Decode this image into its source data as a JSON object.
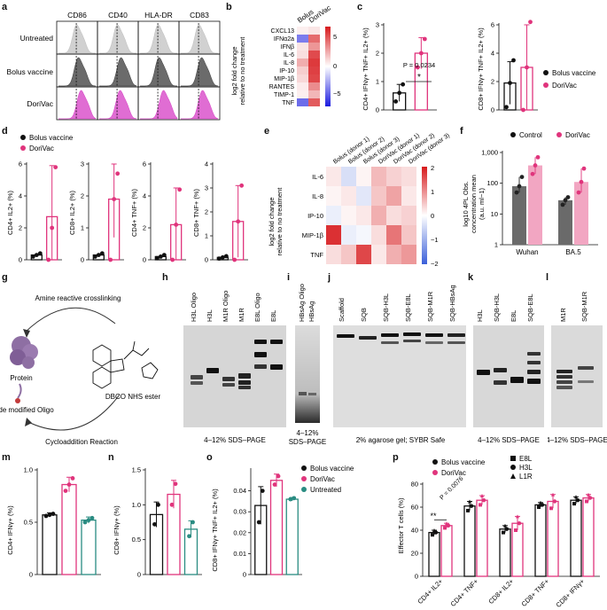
{
  "panels": {
    "a": {
      "letter": "a",
      "markers": [
        "CD86",
        "CD40",
        "HLA-DR",
        "CD83"
      ],
      "conditions": [
        "Untreated",
        "Bolus vaccine",
        "DoriVac"
      ],
      "colors": {
        "untreated": "#bdbdbd",
        "bolus": "#3a3a3a",
        "dorivac": "#d63cc4"
      }
    },
    "b": {
      "letter": "b",
      "columns": [
        "Bolus",
        "DoriVac"
      ],
      "rows": [
        "CXCL13",
        "IFNα2a",
        "IFNβ",
        "IL-6",
        "IL-8",
        "IP-10",
        "MIP-1β",
        "RANTES",
        "TIMP-1",
        "TNF"
      ],
      "values": [
        [
          0.5,
          0.8
        ],
        [
          -4.0,
          4.5
        ],
        [
          0.8,
          3.2
        ],
        [
          1.0,
          5.5
        ],
        [
          2.5,
          6.0
        ],
        [
          1.5,
          5.8
        ],
        [
          1.2,
          5.6
        ],
        [
          0.6,
          3.5
        ],
        [
          0.5,
          2.2
        ],
        [
          -4.5,
          5.0
        ]
      ],
      "ylabel_line1": "log2 fold change",
      "ylabel_line2": "relative to no treatment",
      "scale_ticks": [
        "5",
        "0",
        "−5"
      ],
      "range": [
        -7,
        7
      ]
    },
    "c": {
      "letter": "c",
      "left": {
        "ylabel": "CD4+ IFNγ+ TNF+ IL2+ (%)",
        "yticks": [
          "0",
          "1",
          "2",
          "3"
        ],
        "ylim": [
          0,
          3
        ],
        "bolus_mean": 0.6,
        "bolus_err": 0.3,
        "bolus_points": [
          0.3,
          0.6,
          0.9
        ],
        "dori_mean": 2.0,
        "dori_err": 0.55,
        "dori_points": [
          1.5,
          2.0,
          2.5
        ],
        "pvalue": "P = 0.0234",
        "sig": "*"
      },
      "right": {
        "ylabel": "CD8+ IFNγ+ TNF+ IL2+ (%)",
        "yticks": [
          "0",
          "2",
          "4",
          "6"
        ],
        "ylim": [
          0,
          6
        ],
        "bolus_mean": 1.9,
        "bolus_err": 1.5,
        "bolus_points": [
          0.2,
          1.9,
          3.5
        ],
        "dori_mean": 3.0,
        "dori_err": 3.2,
        "dori_points": [
          0.0,
          3.0,
          6.2
        ]
      },
      "legend": [
        "Bolus vaccine",
        "DoriVac"
      ]
    },
    "d": {
      "letter": "d",
      "legend": [
        "Bolus vaccine",
        "DoriVac"
      ],
      "plots": [
        {
          "ylabel": "CD4+ IL2+ (%)",
          "yticks": [
            "0",
            "2",
            "4",
            "6"
          ],
          "ylim": [
            0,
            6
          ],
          "bolus_mean": 0.3,
          "bolus_points": [
            0.2,
            0.3,
            0.4
          ],
          "dori_mean": 2.7,
          "dori_err": 3.2,
          "dori_points": [
            0.0,
            2.0,
            5.8
          ]
        },
        {
          "ylabel": "CD8+ IL2+ (%)",
          "yticks": [
            "0",
            "1",
            "2",
            "3"
          ],
          "ylim": [
            0,
            3
          ],
          "bolus_mean": 0.15,
          "bolus_points": [
            0.1,
            0.15,
            0.2
          ],
          "dori_mean": 1.9,
          "dori_err": 1.2,
          "dori_points": [
            0.0,
            1.9,
            2.7
          ]
        },
        {
          "ylabel": "CD4+ TNF+ (%)",
          "yticks": [
            "0",
            "2",
            "4",
            "6"
          ],
          "ylim": [
            0,
            6
          ],
          "bolus_mean": 0.2,
          "bolus_points": [
            0.1,
            0.2,
            0.3
          ],
          "dori_mean": 2.2,
          "dori_err": 2.3,
          "dori_points": [
            0.0,
            2.2,
            4.4
          ]
        },
        {
          "ylabel": "CD8+ TNF+ (%)",
          "yticks": [
            "0",
            "1",
            "2",
            "3",
            "4"
          ],
          "ylim": [
            0,
            4
          ],
          "bolus_mean": 0.1,
          "bolus_points": [
            0.05,
            0.1,
            0.15
          ],
          "dori_mean": 1.6,
          "dori_err": 1.5,
          "dori_points": [
            0.0,
            1.6,
            3.1
          ]
        }
      ]
    },
    "e": {
      "letter": "e",
      "columns": [
        "Bolus (donor 1)",
        "Bolus (donor 2)",
        "Bolus (donor 3)",
        "DoriVac (donor 1)",
        "DoriVac (donor 2)",
        "DoriVac (donor 3)"
      ],
      "rows": [
        "IL-6",
        "IL-8",
        "IP-10",
        "MIP-1β",
        "TNF"
      ],
      "values": [
        [
          0.2,
          -0.4,
          0.1,
          0.6,
          0.4,
          0.3
        ],
        [
          0.1,
          0.2,
          -0.3,
          0.5,
          0.8,
          0.2
        ],
        [
          -0.2,
          0.1,
          0.2,
          0.7,
          0.3,
          0.4
        ],
        [
          1.8,
          -0.2,
          -0.1,
          0.3,
          1.2,
          0.5
        ],
        [
          0.3,
          0.5,
          1.6,
          0.2,
          0.7,
          0.9
        ]
      ],
      "ylabel_line1": "log2 fold change",
      "ylabel_line2": "relative to no treatment",
      "scale_ticks": [
        "2",
        "1",
        "0",
        "−1",
        "−2"
      ],
      "range": [
        -2,
        2
      ]
    },
    "f": {
      "letter": "f",
      "legend": [
        "Control",
        "DoriVac"
      ],
      "ylabel_line1": "log10 4PL Obs.",
      "ylabel_line2": "concentration mean",
      "ylabel_line3": "(a.u. ml−1)",
      "yticks": [
        "1",
        "10",
        "100",
        "1,000"
      ],
      "categories": [
        "Wuhan",
        "BA.5"
      ],
      "control_means": [
        80,
        28
      ],
      "control_points": [
        [
          50,
          80,
          160
        ],
        [
          20,
          28,
          35
        ]
      ],
      "dori_means": [
        380,
        110
      ],
      "dori_points": [
        [
          200,
          380,
          700
        ],
        [
          50,
          110,
          300
        ]
      ],
      "colors": {
        "control": "#6a6a6a",
        "dorivac": "#f2a6c2",
        "dorivac_point": "#e0347c"
      }
    },
    "g": {
      "letter": "g",
      "labels": {
        "top": "Amine reactive crosslinking",
        "protein": "Protein",
        "oligo": "Azide modified Oligo",
        "bottom": "Cycloaddition Reaction",
        "dbco": "DBCO NHS ester"
      }
    },
    "h": {
      "letter": "h",
      "lanes": [
        "H3L Oligo",
        "H3L",
        "M1R Oligo",
        "M1R",
        "E8L Oligo",
        "E8L"
      ],
      "caption": "4–12% SDS–PAGE"
    },
    "i": {
      "letter": "i",
      "lanes": [
        "HBsAg Oligo",
        "HBsAg"
      ],
      "caption_line1": "4–12%",
      "caption_line2": "SDS–PAGE"
    },
    "j": {
      "letter": "j",
      "lanes": [
        "Scaffold",
        "SQB",
        "SQB-H3L",
        "SQB-E8L",
        "SQB-M1R",
        "SQB-HBsAg"
      ],
      "caption": "2% agarose gel; SYBR Safe"
    },
    "k": {
      "letter": "k",
      "lanes": [
        "H3L",
        "SQB-H3L",
        "E8L",
        "SQB-E8L"
      ],
      "caption": "4–12% SDS–PAGE"
    },
    "l": {
      "letter": "l",
      "lanes": [
        "M1R",
        "SQB-M1R"
      ],
      "caption": "4–12% SDS–PAGE"
    },
    "m": {
      "letter": "m",
      "ylabel": "CD4+ IFNγ+ (%)",
      "yticks": [
        "0",
        "0.5",
        "1.0"
      ],
      "ylim": [
        0,
        1.0
      ],
      "means": [
        0.57,
        0.86,
        0.52
      ],
      "errs": [
        0.02,
        0.07,
        0.03
      ],
      "points": [
        [
          0.56,
          0.57,
          0.58
        ],
        [
          0.8,
          0.86,
          0.92
        ],
        [
          0.5,
          0.52,
          0.54
        ]
      ]
    },
    "n": {
      "letter": "n",
      "ylabel": "CD8+ IFNγ+ (%)",
      "yticks": [
        "0",
        "0.5",
        "1.0",
        "1.5"
      ],
      "ylim": [
        0,
        1.5
      ],
      "means": [
        0.86,
        1.15,
        0.65
      ],
      "errs": [
        0.18,
        0.2,
        0.12
      ],
      "points": [
        [
          0.72,
          1.0
        ],
        [
          1.0,
          1.3
        ],
        [
          0.55,
          0.75
        ]
      ]
    },
    "o": {
      "letter": "o",
      "ylabel": "CD8+ IFNγ+ TNF+ IL2+ (%)",
      "yticks": [
        "0",
        "0.01",
        "0.02",
        "0.03",
        "0.04"
      ],
      "ylim": [
        0,
        0.05
      ],
      "means": [
        0.033,
        0.045,
        0.036
      ],
      "errs": [
        0.009,
        0.003,
        0.0008
      ],
      "points": [
        [
          0.025,
          0.04
        ],
        [
          0.043,
          0.047
        ],
        [
          0.036,
          0.0365
        ]
      ],
      "legend": [
        "Bolus vaccine",
        "DoriVac",
        "Untreated"
      ]
    },
    "p": {
      "letter": "p",
      "ylabel": "Effector T cells (%)",
      "yticks": [
        "0",
        "20",
        "40",
        "60",
        "80"
      ],
      "ylim": [
        0,
        80
      ],
      "categories": [
        "CD4+ IL2+",
        "CD4+ TNF+",
        "CD8+ IL2+",
        "CD8+ TNF+",
        "CD8+ IFNγ+"
      ],
      "bolus_means": [
        38,
        61,
        41,
        62,
        66
      ],
      "bolus_errs": [
        2,
        4,
        3,
        2,
        3
      ],
      "dori_means": [
        44,
        66,
        46,
        65,
        68
      ],
      "dori_errs": [
        2,
        4,
        6,
        6,
        3
      ],
      "legend_conditions": [
        "Bolus vaccine",
        "DoriVac"
      ],
      "legend_antigens": [
        "E8L",
        "H3L",
        "L1R"
      ],
      "pvalue": "P = 0.0076",
      "sig": "**"
    }
  },
  "colors": {
    "bolus": "#111111",
    "dorivac": "#e0347c",
    "untreated": "#2a8c82"
  }
}
